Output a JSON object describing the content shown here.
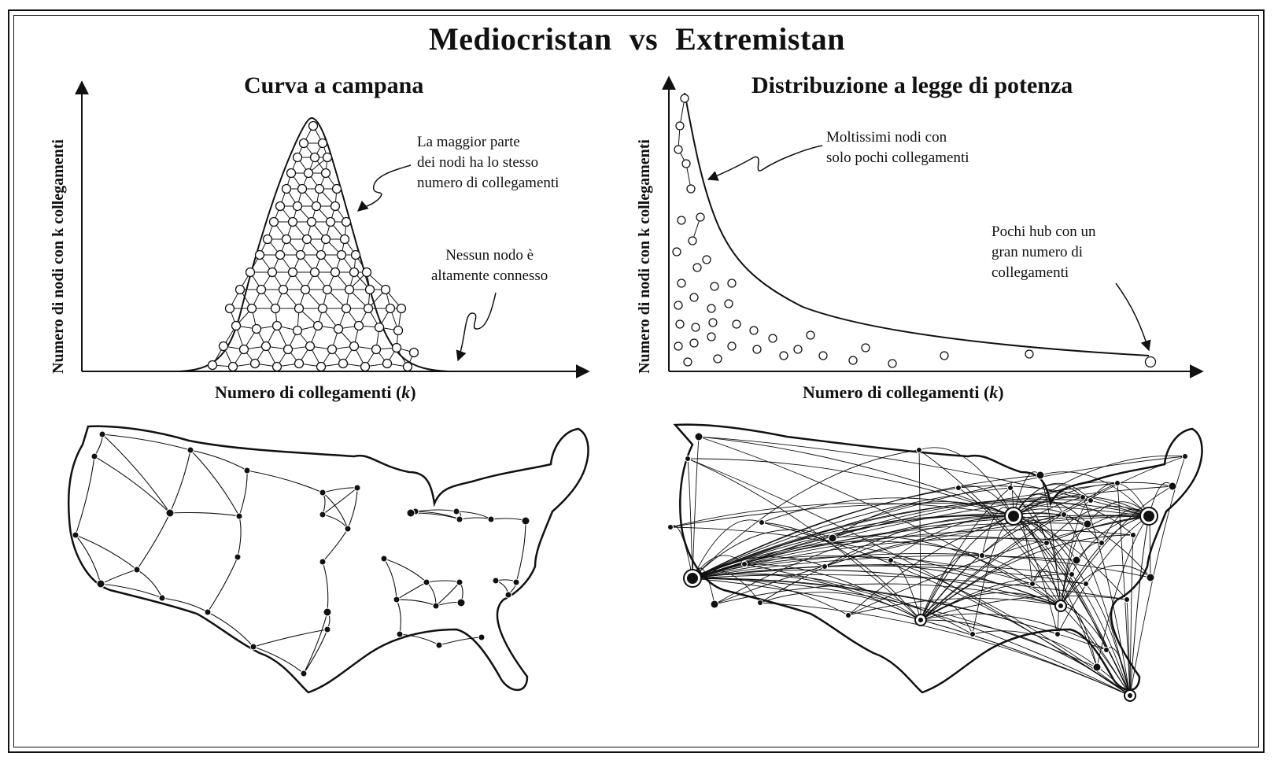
{
  "title": {
    "left": "Mediocristan",
    "mid": "vs",
    "right": "Extremistan"
  },
  "left_panel": {
    "subtitle": "Curva a campana",
    "annotation_top": [
      "La maggior parte",
      "dei nodi ha lo stesso",
      "numero di collegamenti"
    ],
    "annotation_bottom": [
      "Nessun nodo è",
      "altamente connesso"
    ],
    "xlabel": "Numero di collegamenti",
    "xlabel_var": "k",
    "ylabel": "Numero di nodi con k collegamenti"
  },
  "right_panel": {
    "subtitle": "Distribuzione a legge di potenza",
    "annotation_top": [
      "Moltissimi nodi con",
      "solo pochi collegamenti"
    ],
    "annotation_bottom": [
      "Pochi hub con un",
      "gran numero di",
      "collegamenti"
    ],
    "xlabel": "Numero di collegamenti",
    "xlabel_var": "k",
    "ylabel": "Numero di nodi con k collegamenti"
  },
  "colors": {
    "ink": "#111111",
    "paper": "#ffffff"
  },
  "icons": [
    "bell-curve",
    "power-law-curve",
    "usa-map-uniform-network",
    "usa-map-hub-network"
  ]
}
